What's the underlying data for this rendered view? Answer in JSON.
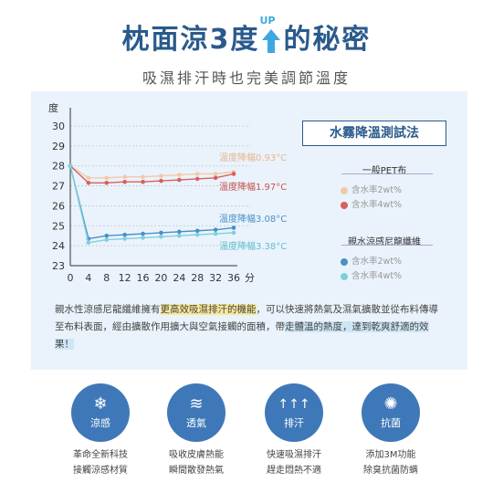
{
  "header": {
    "title_part1": "枕面涼3度",
    "up_label": "UP",
    "title_part2": "的秘密",
    "subtitle": "吸濕排汗時也完美調節溫度"
  },
  "method_title": "水霧降溫測試法",
  "legend": {
    "group1_title": "一般PET布",
    "group1_items": [
      "含水率2wt%",
      "含水率4wt%"
    ],
    "group2_title": "親水涼感尼龍纖維",
    "group2_items": [
      "含水率2wt%",
      "含水率4wt%"
    ]
  },
  "chart_data": {
    "type": "line",
    "ylabel": "度",
    "xlabel": "分",
    "x": [
      0,
      4,
      8,
      12,
      16,
      20,
      24,
      28,
      32,
      36
    ],
    "xlim": [
      0,
      36
    ],
    "ylim": [
      23,
      30
    ],
    "yticks": [
      23,
      24,
      25,
      26,
      27,
      28,
      29,
      30
    ],
    "grid": true,
    "series": [
      {
        "name": "一般PET布 含水率2wt%",
        "color": "#f2c9a8",
        "values": [
          28.0,
          27.4,
          27.4,
          27.45,
          27.45,
          27.5,
          27.55,
          27.6,
          27.6,
          27.7
        ]
      },
      {
        "name": "一般PET布 含水率4wt%",
        "color": "#d9605a",
        "values": [
          28.0,
          27.15,
          27.15,
          27.2,
          27.2,
          27.25,
          27.3,
          27.35,
          27.4,
          27.6
        ]
      },
      {
        "name": "親水涼感尼龍纖維 含水率2wt%",
        "color": "#4a8fc9",
        "values": [
          28.0,
          24.35,
          24.5,
          24.55,
          24.6,
          24.65,
          24.7,
          24.75,
          24.8,
          24.9
        ]
      },
      {
        "name": "親水涼感尼龍纖維 含水率4wt%",
        "color": "#7fd0dd",
        "values": [
          28.0,
          24.15,
          24.3,
          24.35,
          24.4,
          24.45,
          24.5,
          24.55,
          24.6,
          24.65
        ]
      }
    ],
    "annotations": [
      {
        "text": "溫度降幅0.93°C",
        "color": "#e7b58a"
      },
      {
        "text": "溫度降幅1.97°C",
        "color": "#c9524c"
      },
      {
        "text": "溫度降幅3.08°C",
        "color": "#4a8fc9"
      },
      {
        "text": "溫度降幅3.38°C",
        "color": "#5fbfcf"
      }
    ]
  },
  "description": {
    "part1": "親水性涼感尼龍纖維擁有",
    "highlight1": "更高效吸濕排汗的機能",
    "part2": "，可以快速將熱氣及濕氣擴散並從布料傳導至布料表面，經由擴散作用擴大與空氣接觸的面積，帶",
    "highlight2": "走體溫的熱度，達到乾爽舒適的效果！"
  },
  "features": [
    {
      "icon": "❄",
      "icon_name": "snowflake-icon",
      "label": "涼感",
      "line1": "革命全新科技",
      "line2": "接觸涼感材質"
    },
    {
      "icon": "≋",
      "icon_name": "wind-icon",
      "label": "透氣",
      "line1": "吸收皮膚熱能",
      "line2": "瞬間散發熱氣"
    },
    {
      "icon": "↑↑↑",
      "icon_name": "arrows-up-icon",
      "label": "排汗",
      "line1": "快速吸濕排汗",
      "line2": "趕走悶熱不適"
    },
    {
      "icon": "✺",
      "icon_name": "germ-icon",
      "label": "抗菌",
      "line1": "添加3M功能",
      "line2": "除臭抗菌防螨"
    }
  ],
  "colors": {
    "brand": "#2a5a8c",
    "accent": "#3f78b8",
    "panel": "#eaf3fb"
  }
}
